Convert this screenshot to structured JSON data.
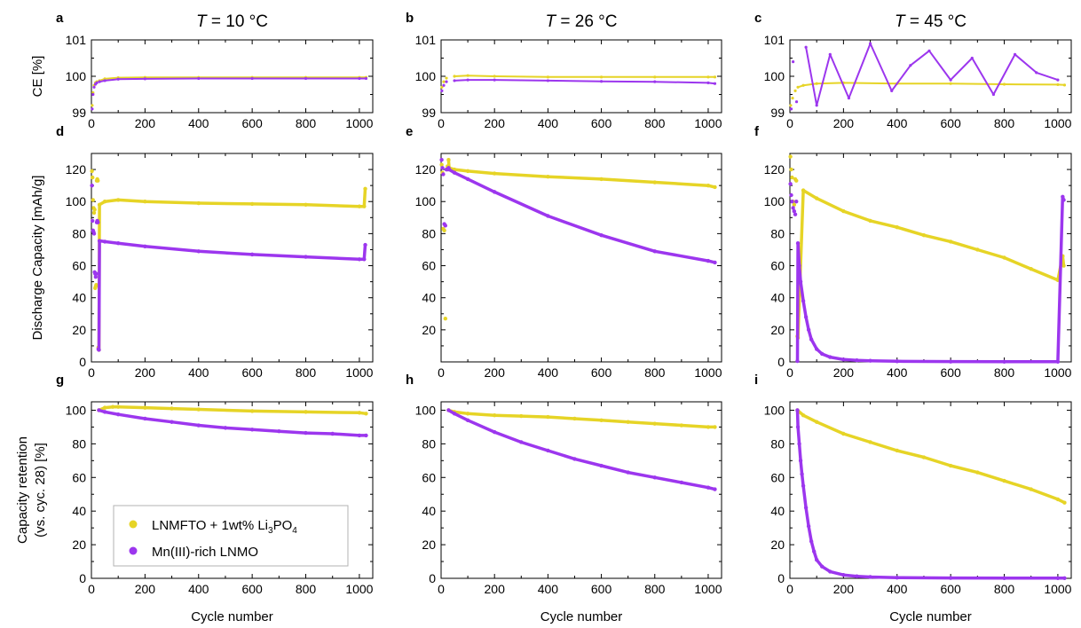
{
  "figure": {
    "colors": {
      "lnmfto": "#e6d426",
      "mn3": "#9c36ee"
    },
    "column_titles": [
      {
        "italic": "T",
        "rest": " = 10 °C"
      },
      {
        "italic": "T",
        "rest": " = 26 °C"
      },
      {
        "italic": "T",
        "rest": " = 45 °C"
      }
    ],
    "row_ylabels": [
      [
        "CE [%]"
      ],
      [
        "Discharge Capacity [mAh/g]"
      ],
      [
        "Capacity retention",
        "(vs. cyc. 28) [%]"
      ]
    ],
    "xlabel": "Cycle number",
    "legend": {
      "position": "lower-left of panel g",
      "entries": [
        {
          "name_main": "LNMFTO + 1wt% Li",
          "sub1": "3",
          "mid": "PO",
          "sub2": "4",
          "color": "#e6d426"
        },
        {
          "name_main": "Mn(III)-rich LNMO",
          "color": "#9c36ee"
        }
      ]
    }
  },
  "chart_data": [
    {
      "panel": "a",
      "row": 0,
      "col": 0,
      "type": "scatter",
      "xlim": [
        0,
        1050
      ],
      "ylim": [
        99,
        101
      ],
      "yticks": [
        99,
        100,
        101
      ],
      "xticks": [
        0,
        200,
        400,
        600,
        800,
        1000
      ],
      "series": [
        {
          "key": "lnmfto",
          "x": [
            3,
            6,
            10,
            15,
            20,
            30,
            50,
            100,
            200,
            400,
            600,
            800,
            1000,
            1025
          ],
          "y": [
            99.2,
            99.55,
            99.75,
            99.82,
            99.85,
            99.88,
            99.93,
            99.96,
            99.97,
            99.97,
            99.97,
            99.97,
            99.97,
            99.97
          ]
        },
        {
          "key": "mn3",
          "x": [
            3,
            6,
            10,
            15,
            20,
            30,
            50,
            100,
            200,
            400,
            600,
            800,
            1000,
            1025
          ],
          "y": [
            99.1,
            99.5,
            99.7,
            99.78,
            99.82,
            99.85,
            99.88,
            99.92,
            99.93,
            99.94,
            99.94,
            99.94,
            99.94,
            99.94
          ]
        }
      ]
    },
    {
      "panel": "b",
      "row": 0,
      "col": 1,
      "type": "scatter",
      "xlim": [
        0,
        1050
      ],
      "ylim": [
        99,
        101
      ],
      "yticks": [
        99,
        100,
        101
      ],
      "xticks": [
        0,
        200,
        400,
        600,
        800,
        1000
      ],
      "series": [
        {
          "key": "lnmfto",
          "x": [
            3,
            10,
            20,
            50,
            100,
            200,
            400,
            600,
            800,
            1000,
            1025
          ],
          "y": [
            99.7,
            99.85,
            99.95,
            100.0,
            100.02,
            100.0,
            99.98,
            99.98,
            99.98,
            99.98,
            99.98
          ]
        },
        {
          "key": "mn3",
          "x": [
            3,
            10,
            20,
            50,
            100,
            200,
            400,
            600,
            800,
            1000,
            1025
          ],
          "y": [
            99.6,
            99.75,
            99.85,
            99.88,
            99.9,
            99.9,
            99.88,
            99.86,
            99.85,
            99.82,
            99.8
          ]
        }
      ]
    },
    {
      "panel": "c",
      "row": 0,
      "col": 2,
      "type": "scatter",
      "xlim": [
        0,
        1050
      ],
      "ylim": [
        99,
        101
      ],
      "yticks": [
        99,
        100,
        101
      ],
      "xticks": [
        0,
        200,
        400,
        600,
        800,
        1000
      ],
      "series": [
        {
          "key": "lnmfto",
          "x": [
            3,
            10,
            20,
            30,
            50,
            100,
            200,
            400,
            600,
            800,
            1000,
            1025
          ],
          "y": [
            99.2,
            99.4,
            99.6,
            99.7,
            99.75,
            99.8,
            99.82,
            99.8,
            99.8,
            99.78,
            99.77,
            99.76
          ]
        },
        {
          "key": "mn3",
          "x": [
            5,
            12,
            25,
            60,
            100,
            150,
            220,
            300,
            380,
            450,
            520,
            600,
            680,
            760,
            840,
            920,
            1000
          ],
          "y": [
            99.1,
            100.4,
            99.3,
            100.8,
            99.2,
            100.6,
            99.4,
            100.9,
            99.6,
            100.3,
            100.7,
            99.9,
            100.5,
            99.5,
            100.6,
            100.1,
            99.9
          ]
        }
      ]
    },
    {
      "panel": "d",
      "row": 1,
      "col": 0,
      "type": "scatter",
      "xlim": [
        0,
        1050
      ],
      "ylim": [
        0,
        130
      ],
      "yticks": [
        0,
        20,
        40,
        60,
        80,
        100,
        120
      ],
      "xticks": [
        0,
        200,
        400,
        600,
        800,
        1000
      ],
      "series": [
        {
          "key": "lnmfto",
          "x": [
            2,
            4,
            6,
            8,
            10,
            12,
            14,
            16,
            18,
            20,
            22,
            24,
            26,
            28,
            30,
            50,
            100,
            200,
            400,
            600,
            800,
            1000,
            1018,
            1022
          ],
          "y": [
            119,
            115,
            101,
            96,
            93,
            95,
            46,
            47,
            48,
            113,
            114,
            113,
            9,
            7.5,
            98,
            100,
            101,
            100,
            99,
            98.5,
            98,
            97,
            97,
            108
          ]
        },
        {
          "key": "mn3",
          "x": [
            2,
            4,
            6,
            8,
            10,
            12,
            14,
            16,
            18,
            20,
            22,
            24,
            26,
            28,
            30,
            50,
            100,
            200,
            400,
            600,
            800,
            1000,
            1018,
            1022
          ],
          "y": [
            110,
            88,
            82,
            81,
            80,
            56,
            55,
            53,
            55,
            87,
            88,
            87,
            8,
            7.5,
            75.5,
            75,
            74,
            72,
            69,
            67,
            65.5,
            64,
            64,
            73
          ]
        }
      ]
    },
    {
      "panel": "e",
      "row": 1,
      "col": 1,
      "type": "scatter",
      "xlim": [
        0,
        1050
      ],
      "ylim": [
        0,
        130
      ],
      "yticks": [
        20,
        40,
        60,
        80,
        100,
        120
      ],
      "xticks": [
        0,
        200,
        400,
        600,
        800,
        1000
      ],
      "series": [
        {
          "key": "lnmfto",
          "x": [
            2,
            5,
            8,
            12,
            16,
            20,
            24,
            28,
            30,
            50,
            100,
            200,
            400,
            600,
            800,
            1000,
            1025
          ],
          "y": [
            123,
            118,
            83,
            82,
            27,
            120,
            122,
            126,
            121,
            120,
            119,
            117.5,
            115.5,
            114,
            112,
            110,
            109
          ]
        },
        {
          "key": "mn3",
          "x": [
            2,
            5,
            8,
            12,
            16,
            20,
            24,
            28,
            30,
            50,
            100,
            200,
            400,
            600,
            800,
            1000,
            1025
          ],
          "y": [
            126,
            121,
            117,
            86,
            85,
            120,
            120,
            121,
            120,
            118,
            114,
            106,
            91,
            79,
            69,
            63,
            62
          ]
        }
      ]
    },
    {
      "panel": "f",
      "row": 1,
      "col": 2,
      "type": "scatter",
      "xlim": [
        0,
        1050
      ],
      "ylim": [
        0,
        130
      ],
      "yticks": [
        0,
        20,
        40,
        60,
        80,
        100,
        120
      ],
      "xticks": [
        0,
        200,
        400,
        600,
        800,
        1000
      ],
      "series": [
        {
          "key": "lnmfto",
          "x": [
            2,
            5,
            8,
            12,
            16,
            20,
            24,
            28,
            30,
            50,
            100,
            200,
            300,
            400,
            500,
            600,
            700,
            800,
            900,
            1000,
            1018,
            1022
          ],
          "y": [
            128,
            120,
            115,
            100,
            98,
            114,
            113,
            16,
            15,
            107,
            102,
            94,
            88,
            84,
            79,
            75,
            70,
            65,
            58,
            51,
            66,
            60
          ]
        },
        {
          "key": "mn3",
          "x": [
            2,
            5,
            8,
            12,
            16,
            20,
            24,
            28,
            30,
            35,
            40,
            50,
            60,
            70,
            80,
            100,
            120,
            150,
            200,
            250,
            300,
            400,
            600,
            800,
            1000,
            1018,
            1022
          ],
          "y": [
            111,
            104,
            100,
            96,
            94,
            92,
            100,
            0.5,
            74,
            60,
            50,
            38,
            28,
            20,
            14,
            8,
            5,
            3,
            1.5,
            1,
            0.7,
            0.4,
            0.2,
            0.1,
            0.1,
            103,
            101
          ]
        }
      ]
    },
    {
      "panel": "g",
      "row": 2,
      "col": 0,
      "type": "scatter",
      "xlim": [
        0,
        1050
      ],
      "ylim": [
        0,
        105
      ],
      "yticks": [
        0,
        20,
        40,
        60,
        80,
        100
      ],
      "xticks": [
        0,
        200,
        400,
        600,
        800,
        1000
      ],
      "series": [
        {
          "key": "lnmfto",
          "x": [
            28,
            50,
            80,
            100,
            200,
            300,
            400,
            600,
            800,
            1000,
            1025
          ],
          "y": [
            100,
            101.5,
            102,
            102,
            101.5,
            101,
            100.5,
            99.5,
            99,
            98.5,
            98
          ]
        },
        {
          "key": "mn3",
          "x": [
            28,
            50,
            100,
            200,
            300,
            400,
            500,
            600,
            700,
            800,
            900,
            1000,
            1025
          ],
          "y": [
            100,
            99,
            97.5,
            95,
            93,
            91,
            89.5,
            88.5,
            87.5,
            86.5,
            86,
            85,
            85
          ]
        }
      ]
    },
    {
      "panel": "h",
      "row": 2,
      "col": 1,
      "type": "scatter",
      "xlim": [
        0,
        1050
      ],
      "ylim": [
        0,
        105
      ],
      "yticks": [
        0,
        20,
        40,
        60,
        80,
        100
      ],
      "xticks": [
        0,
        200,
        400,
        600,
        800,
        1000
      ],
      "series": [
        {
          "key": "lnmfto",
          "x": [
            28,
            50,
            100,
            200,
            300,
            400,
            500,
            600,
            700,
            800,
            900,
            1000,
            1025
          ],
          "y": [
            100,
            99,
            98,
            97,
            96.5,
            96,
            95,
            94,
            93,
            92,
            91,
            90,
            90
          ]
        },
        {
          "key": "mn3",
          "x": [
            28,
            50,
            100,
            200,
            300,
            400,
            500,
            600,
            700,
            800,
            900,
            1000,
            1025
          ],
          "y": [
            100,
            98,
            94,
            87,
            81,
            76,
            71,
            67,
            63,
            60,
            57,
            54,
            53
          ]
        }
      ]
    },
    {
      "panel": "i",
      "row": 2,
      "col": 2,
      "type": "scatter",
      "xlim": [
        0,
        1050
      ],
      "ylim": [
        0,
        105
      ],
      "yticks": [
        0,
        20,
        40,
        60,
        80,
        100
      ],
      "xticks": [
        0,
        200,
        400,
        600,
        800,
        1000
      ],
      "series": [
        {
          "key": "lnmfto",
          "x": [
            28,
            50,
            100,
            200,
            300,
            400,
            500,
            600,
            700,
            800,
            900,
            1000,
            1025
          ],
          "y": [
            100,
            97,
            93,
            86,
            81,
            76,
            72,
            67,
            63,
            58,
            53,
            47,
            45
          ]
        },
        {
          "key": "mn3",
          "x": [
            28,
            30,
            35,
            40,
            45,
            50,
            60,
            70,
            80,
            90,
            100,
            120,
            150,
            200,
            250,
            300,
            400,
            600,
            800,
            1000,
            1025
          ],
          "y": [
            100,
            90,
            80,
            70,
            62,
            55,
            42,
            31,
            22,
            16,
            11,
            7,
            4,
            2,
            1.2,
            0.8,
            0.4,
            0.2,
            0.1,
            0.1,
            0.1
          ]
        }
      ]
    }
  ]
}
